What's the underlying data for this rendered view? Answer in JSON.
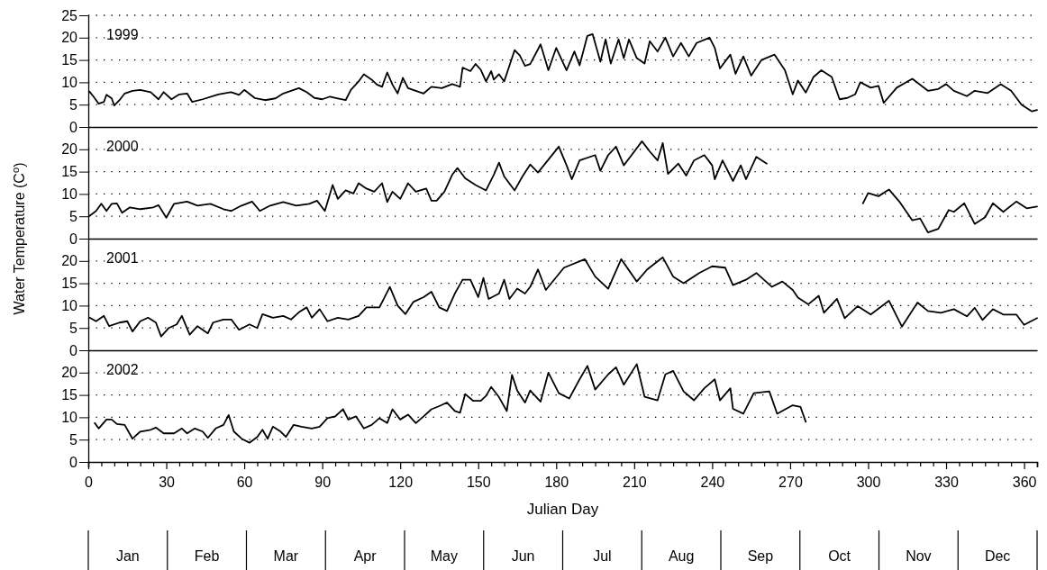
{
  "chart_data": [
    {
      "type": "line",
      "title": "1999",
      "ylabel": "Water Temperature (C$^{o}$)",
      "xlim": [
        0,
        365
      ],
      "ylim": [
        0,
        25
      ],
      "yticks": [
        0,
        5,
        10,
        15,
        20,
        25
      ],
      "grid": "y",
      "tick_labels": "y",
      "series": [
        {
          "color": "#000000",
          "x": [
            0.5,
            2,
            4,
            6,
            7,
            9,
            10,
            12,
            14,
            17,
            20,
            24,
            27,
            29,
            32,
            35,
            38,
            40,
            44,
            50,
            55,
            58,
            60,
            64,
            68,
            72,
            75,
            78,
            81,
            84,
            87,
            90,
            93,
            96,
            99,
            101,
            104,
            106,
            109,
            111,
            113,
            115,
            117,
            119,
            121,
            123,
            126,
            129,
            132,
            136,
            140,
            143,
            144,
            147,
            149,
            151,
            153,
            155,
            156,
            158,
            160,
            162,
            164,
            166,
            168,
            170,
            174,
            177,
            180,
            184,
            187,
            189,
            192,
            194,
            197,
            199,
            201,
            204,
            206,
            208,
            211,
            214,
            216,
            219,
            222,
            225,
            228,
            231,
            234,
            239,
            241,
            243,
            247,
            249,
            252,
            255,
            259,
            264,
            268,
            271,
            273,
            276,
            279,
            282,
            286,
            289,
            292,
            295,
            297,
            301,
            304,
            306,
            311,
            317,
            323,
            327,
            330,
            333,
            338,
            341,
            346,
            351,
            355,
            359,
            363,
            365
          ],
          "values": [
            7.9,
            6.8,
            5.2,
            5.6,
            7.2,
            6.4,
            4.8,
            6,
            7.5,
            8.1,
            8.3,
            7.8,
            6.2,
            7.8,
            6.2,
            7.3,
            7.5,
            5.6,
            6.2,
            7.3,
            7.8,
            7.2,
            8.3,
            6.5,
            6,
            6.4,
            7.5,
            8.1,
            8.7,
            7.8,
            6.5,
            6.2,
            6.8,
            6.4,
            6,
            8.3,
            10.2,
            11.8,
            10.6,
            9.5,
            9,
            12.2,
            9.5,
            7.5,
            11,
            8.7,
            8.1,
            7.5,
            9,
            8.7,
            9.6,
            9,
            13.3,
            12.5,
            14.1,
            12.8,
            10.2,
            12.5,
            10.6,
            11.8,
            10.2,
            13.7,
            17.2,
            16,
            13.7,
            14.1,
            18.5,
            12.7,
            17.7,
            12.7,
            16.9,
            13.8,
            20.4,
            20.8,
            14.6,
            19.6,
            14.2,
            19.6,
            15.4,
            19.6,
            15.4,
            14.2,
            19.2,
            16.9,
            20,
            15.8,
            18.8,
            15.8,
            18.8,
            20,
            17.7,
            13.1,
            16.2,
            11.9,
            15.8,
            11.5,
            15,
            16.2,
            12.7,
            7.3,
            10.4,
            7.7,
            11.2,
            12.7,
            11.2,
            6.2,
            6.5,
            7.3,
            10,
            8.8,
            9.2,
            5.4,
            8.8,
            10.8,
            8.1,
            8.5,
            9.6,
            8.1,
            6.9,
            8.1,
            7.6,
            9.6,
            8.1,
            5,
            3.5,
            3.8
          ]
        }
      ]
    },
    {
      "type": "line",
      "title": "2000",
      "xlim": [
        0,
        365
      ],
      "ylim": [
        0,
        25
      ],
      "yticks": [
        0,
        5,
        10,
        15,
        20
      ],
      "grid": "y",
      "tick_labels": "y",
      "series": [
        {
          "color": "#000000",
          "x": [
            0.5,
            3,
            5,
            7,
            9,
            11,
            13,
            16,
            20,
            25,
            27,
            30,
            33,
            38,
            42,
            47,
            52,
            55,
            59,
            63,
            66,
            70,
            75,
            80,
            85,
            88,
            91,
            94,
            96,
            99,
            102,
            104,
            107,
            110,
            113,
            115,
            117,
            120,
            123,
            126,
            130,
            132,
            134,
            137,
            140,
            142,
            145,
            149,
            153,
            156,
            158,
            160,
            164,
            167,
            170,
            173,
            181,
            184,
            186,
            189,
            195,
            197,
            200,
            203,
            206,
            209,
            213,
            216,
            219,
            221,
            223,
            227,
            230,
            233,
            237,
            240,
            241,
            244,
            248,
            251,
            253,
            257,
            261,
            280,
            298,
            300,
            304,
            308,
            312,
            317,
            320,
            323,
            327,
            331,
            333,
            337,
            341,
            345,
            348,
            352,
            357,
            361,
            365
          ],
          "values": [
            5.1,
            6.2,
            7.8,
            6.2,
            7.8,
            7.9,
            5.8,
            7,
            6.6,
            7,
            7.5,
            4.7,
            7.8,
            8.3,
            7.4,
            7.8,
            6.6,
            6.2,
            7.4,
            8.3,
            6.2,
            7.4,
            8.2,
            7.4,
            7.8,
            8.5,
            6.2,
            12,
            8.9,
            10.8,
            10.1,
            12.4,
            11.2,
            10.5,
            12.4,
            8.2,
            10.5,
            8.9,
            12.4,
            10.5,
            11.2,
            8.5,
            8.5,
            10.5,
            14.3,
            15.8,
            13.5,
            12,
            10.8,
            14.3,
            17,
            13.9,
            10.8,
            13.9,
            16.6,
            14.8,
            20.6,
            16.4,
            13.3,
            17.5,
            18.7,
            15.2,
            18.7,
            20.6,
            16.4,
            18.7,
            21.8,
            19.5,
            17.5,
            21.4,
            14.5,
            16.8,
            14.1,
            17.5,
            18.7,
            16.4,
            13.3,
            17.5,
            12.9,
            16.4,
            13.3,
            18.3,
            16.8,
            null,
            7.9,
            10.2,
            9.5,
            11,
            8.3,
            4.1,
            4.5,
            1.4,
            2.2,
            6.4,
            6,
            7.9,
            3.3,
            4.8,
            7.9,
            6,
            8.3,
            6.8,
            7.2
          ]
        }
      ]
    },
    {
      "type": "line",
      "title": "2001",
      "xlim": [
        0,
        365
      ],
      "ylim": [
        0,
        25
      ],
      "yticks": [
        0,
        5,
        10,
        15,
        20
      ],
      "grid": "y",
      "tick_labels": "y",
      "series": [
        {
          "color": "#000000",
          "x": [
            0.5,
            3,
            6,
            8,
            12,
            15,
            17,
            20,
            23,
            26,
            28,
            31,
            34,
            36,
            39,
            42,
            46,
            48,
            52,
            55,
            58,
            62,
            65,
            67,
            71,
            75,
            78,
            81,
            84,
            86,
            89,
            92,
            96,
            100,
            104,
            107,
            112,
            116,
            119,
            122,
            125,
            129,
            132,
            135,
            138,
            141,
            144,
            147,
            150,
            152,
            154,
            158,
            160,
            162,
            165,
            168,
            170,
            173,
            176,
            183,
            191,
            195,
            200,
            205,
            211,
            215,
            221,
            225,
            229,
            235,
            240,
            245,
            248,
            253,
            257,
            263,
            267,
            271,
            273,
            277,
            281,
            283,
            288,
            291,
            296,
            301,
            308,
            313,
            319,
            323,
            328,
            333,
            338,
            341,
            344,
            348,
            352,
            357,
            360,
            365
          ],
          "values": [
            7.3,
            6.5,
            7.7,
            5.4,
            6.2,
            6.5,
            4.2,
            6.5,
            7.3,
            6.2,
            3.1,
            5,
            5.8,
            7.7,
            3.5,
            5.4,
            3.8,
            6.2,
            6.9,
            6.9,
            4.6,
            5.8,
            5,
            8.1,
            7.3,
            7.7,
            6.9,
            8.5,
            9.6,
            7.3,
            9.2,
            6.5,
            7.3,
            6.9,
            7.7,
            9.6,
            9.6,
            14.2,
            10,
            8.1,
            10.8,
            11.9,
            13.1,
            9.6,
            8.8,
            12.7,
            15.8,
            15.8,
            11.9,
            16.2,
            11.5,
            12.7,
            15.8,
            11.5,
            13.8,
            12.7,
            14.2,
            18.1,
            13.5,
            18.5,
            20.4,
            16.5,
            13.8,
            20.4,
            15.4,
            18.1,
            20.8,
            16.5,
            15,
            17.3,
            18.8,
            18.5,
            14.6,
            15.8,
            17.3,
            14.2,
            15.4,
            13.5,
            11.8,
            10.3,
            12.2,
            8.4,
            11.5,
            7.2,
            9.9,
            8,
            11.1,
            5.3,
            10.7,
            8.8,
            8.4,
            9.2,
            7.6,
            9.5,
            6.8,
            9.2,
            8,
            8,
            5.7,
            7.2
          ]
        }
      ]
    },
    {
      "type": "line",
      "title": "2002",
      "xlabel": "Julian Day",
      "xlim": [
        0,
        365
      ],
      "ylim": [
        0,
        25
      ],
      "yticks": [
        0,
        5,
        10,
        15,
        20
      ],
      "grid": "y",
      "xticks": [
        0,
        {
          "value": 5,
          "label": null
        },
        {
          "value": 10,
          "label": null
        },
        {
          "value": 15,
          "label": null
        },
        {
          "value": 20,
          "label": null
        },
        {
          "value": 25,
          "label": null
        },
        30,
        {
          "value": 35,
          "label": null
        },
        {
          "value": 40,
          "label": null
        },
        {
          "value": 45,
          "label": null
        },
        {
          "value": 50,
          "label": null
        },
        {
          "value": 55,
          "label": null
        },
        60,
        {
          "value": 65,
          "label": null
        },
        {
          "value": 70,
          "label": null
        },
        {
          "value": 75,
          "label": null
        },
        {
          "value": 80,
          "label": null
        },
        {
          "value": 85,
          "label": null
        },
        90,
        {
          "value": 95,
          "label": null
        },
        {
          "value": 100,
          "label": null
        },
        {
          "value": 105,
          "label": null
        },
        {
          "value": 110,
          "label": null
        },
        {
          "value": 115,
          "label": null
        },
        120,
        {
          "value": 125,
          "label": null
        },
        {
          "value": 130,
          "label": null
        },
        {
          "value": 135,
          "label": null
        },
        {
          "value": 140,
          "label": null
        },
        {
          "value": 145,
          "label": null
        },
        150,
        {
          "value": 155,
          "label": null
        },
        {
          "value": 160,
          "label": null
        },
        {
          "value": 165,
          "label": null
        },
        {
          "value": 170,
          "label": null
        },
        {
          "value": 175,
          "label": null
        },
        180,
        {
          "value": 185,
          "label": null
        },
        {
          "value": 190,
          "label": null
        },
        {
          "value": 195,
          "label": null
        },
        {
          "value": 200,
          "label": null
        },
        {
          "value": 205,
          "label": null
        },
        210,
        {
          "value": 215,
          "label": null
        },
        {
          "value": 220,
          "label": null
        },
        {
          "value": 225,
          "label": null
        },
        {
          "value": 230,
          "label": null
        },
        {
          "value": 235,
          "label": null
        },
        240,
        {
          "value": 245,
          "label": null
        },
        {
          "value": 250,
          "label": null
        },
        {
          "value": 255,
          "label": null
        },
        {
          "value": 260,
          "label": null
        },
        {
          "value": 265,
          "label": null
        },
        270,
        {
          "value": 275,
          "label": null
        },
        {
          "value": 280,
          "label": null
        },
        {
          "value": 285,
          "label": null
        },
        {
          "value": 290,
          "label": null
        },
        {
          "value": 295,
          "label": null
        },
        300,
        {
          "value": 305,
          "label": null
        },
        {
          "value": 310,
          "label": null
        },
        {
          "value": 315,
          "label": null
        },
        {
          "value": 320,
          "label": null
        },
        {
          "value": 325,
          "label": null
        },
        330,
        {
          "value": 335,
          "label": null
        },
        {
          "value": 340,
          "label": null
        },
        {
          "value": 345,
          "label": null
        },
        {
          "value": 350,
          "label": null
        },
        {
          "value": 355,
          "label": null
        },
        360,
        {
          "value": 365,
          "label": null
        }
      ],
      "annotations": [
        "Jan",
        "Feb",
        "Mar",
        "Apr",
        "May",
        "Jun",
        "Jul",
        "Aug",
        "Sep",
        "Oct",
        "Nov",
        "Dec"
      ],
      "series": [
        {
          "color": "#000000",
          "x": [
            2.5,
            4,
            7,
            9,
            11,
            14,
            17,
            20,
            24,
            26,
            29,
            33,
            36,
            38,
            41,
            44,
            46,
            49,
            52,
            54,
            56,
            59,
            62,
            65,
            67,
            69,
            71,
            74,
            76,
            79,
            82,
            86,
            89,
            92,
            95,
            98,
            100,
            103,
            106,
            109,
            112,
            115,
            117,
            120,
            123,
            126,
            129,
            132,
            135,
            138,
            141,
            143,
            145,
            148,
            151,
            153,
            155,
            158,
            161,
            163,
            165,
            168,
            170,
            174,
            177,
            181,
            185,
            189,
            192,
            195,
            200,
            203,
            206,
            211,
            214,
            219,
            222,
            225,
            229,
            233,
            237,
            241,
            243,
            247,
            248,
            252,
            256,
            262,
            265,
            271,
            274,
            276
          ],
          "values": [
            8.7,
            7.5,
            9.5,
            9.5,
            8.5,
            8.3,
            5.2,
            6.8,
            7.2,
            7.7,
            6.4,
            6.4,
            7.5,
            6.4,
            7.5,
            6.8,
            5.4,
            7.5,
            8.3,
            10.5,
            6.8,
            5.2,
            4.3,
            5.6,
            7.2,
            5.2,
            7.9,
            6.8,
            5.6,
            8.3,
            7.9,
            7.5,
            7.9,
            9.8,
            10.2,
            11.8,
            9.5,
            10.2,
            7.5,
            8.3,
            9.8,
            8.7,
            11.8,
            9.5,
            10.6,
            8.7,
            10.2,
            11.8,
            12.5,
            13.3,
            11.4,
            11,
            15.2,
            13.7,
            13.7,
            14.8,
            16.8,
            14.5,
            11.4,
            19.5,
            16,
            13.3,
            16,
            13.5,
            20,
            15.4,
            14.2,
            18.5,
            21.5,
            16.2,
            19.6,
            21.2,
            17.3,
            21.9,
            14.6,
            13.8,
            19.6,
            20.4,
            15.8,
            13.8,
            16.5,
            18.5,
            13.8,
            16.5,
            11.9,
            10.8,
            15.4,
            15.8,
            10.8,
            12.7,
            12.3,
            9
          ]
        }
      ]
    }
  ]
}
